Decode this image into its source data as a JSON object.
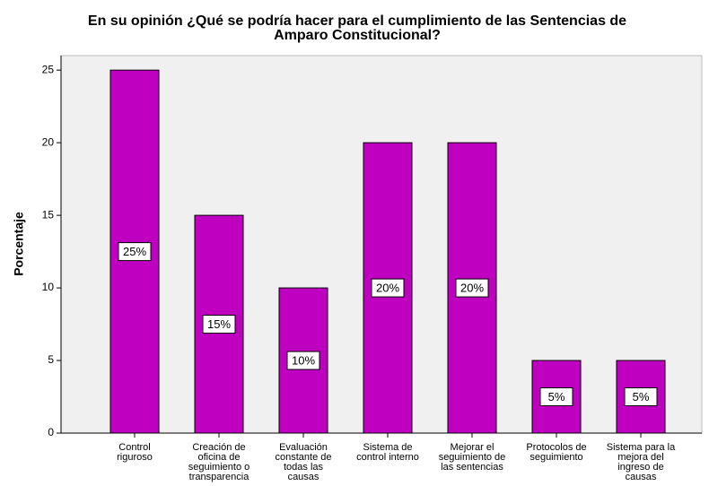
{
  "chart_data": {
    "type": "bar",
    "title": [
      "En su opinión ¿Qué se podría hacer para el cumplimiento de las Sentencias de",
      "Amparo Constitucional?"
    ],
    "ylabel": "Porcentaje",
    "categories": [
      "Control riguroso",
      "Creación de oficina de seguimiento o transparencia",
      "Evaluación constante de todas las causas",
      "Sistema de control interno",
      "Mejorar el seguimiento de las sentencias",
      "Protocolos de seguimiento",
      "Sistema para la mejora del ingreso de causas"
    ],
    "values": [
      25,
      15,
      10,
      20,
      20,
      5,
      5
    ],
    "value_labels": [
      "25%",
      "15%",
      "10%",
      "20%",
      "20%",
      "5%",
      "5%"
    ],
    "color": "#c000c0",
    "ylim": [
      0,
      26
    ],
    "yticks": [
      0,
      5,
      10,
      15,
      20,
      25
    ]
  }
}
